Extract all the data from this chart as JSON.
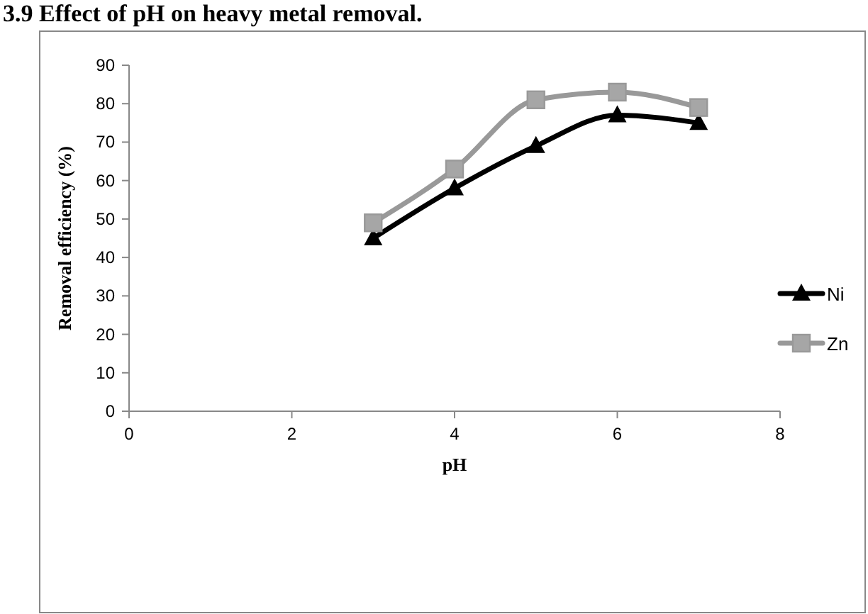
{
  "chart_data": {
    "type": "line",
    "title": "3.9 Effect of pH on heavy metal removal.",
    "xlabel": "pH",
    "ylabel": "Removal efficiency (%)",
    "x": [
      3,
      4,
      5,
      6,
      7
    ],
    "xlim": [
      0,
      8
    ],
    "xticks": [
      0,
      2,
      4,
      6,
      8
    ],
    "ylim": [
      0,
      90
    ],
    "yticks": [
      0,
      10,
      20,
      30,
      40,
      50,
      60,
      70,
      80,
      90
    ],
    "grid": false,
    "legend": "right",
    "series": [
      {
        "name": "Ni",
        "color": "#000000",
        "marker": "triangle",
        "values": [
          45,
          58,
          69,
          77,
          75
        ]
      },
      {
        "name": "Zn",
        "color": "#999999",
        "marker": "square",
        "values": [
          49,
          63,
          81,
          83,
          79
        ]
      }
    ]
  }
}
